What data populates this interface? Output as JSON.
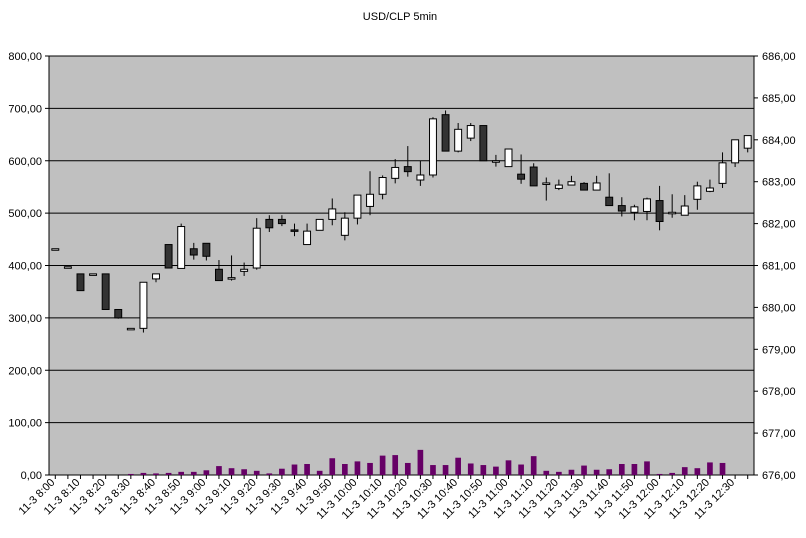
{
  "chart_data": {
    "type": "candlestick",
    "title": "USD/CLP   5min",
    "left_axis": {
      "min": 0,
      "max": 800,
      "ticks": [
        "0,00",
        "100,00",
        "200,00",
        "300,00",
        "400,00",
        "500,00",
        "600,00",
        "700,00",
        "800,00"
      ]
    },
    "right_axis": {
      "min": 676,
      "max": 686,
      "ticks": [
        "676,00",
        "677,00",
        "678,00",
        "679,00",
        "680,00",
        "681,00",
        "682,00",
        "683,00",
        "684,00",
        "685,00",
        "686,00"
      ]
    },
    "grid": "horizontal",
    "legend": "none",
    "colors": {
      "plot_bg": "#c0c0c0",
      "up_fill": "#ffffff",
      "down_fill": "#333333",
      "volume": "#660066",
      "grid": "#000000"
    },
    "x_labels": [
      "11-3 8:00",
      "11-3 8:10",
      "11-3 8:20",
      "11-3 8:30",
      "11-3 8:40",
      "11-3 8:50",
      "11-3 9:00",
      "11-3 9:10",
      "11-3 9:20",
      "11-3 9:30",
      "11-3 9:40",
      "11-3 9:50",
      "11-3 10:00",
      "11-3 10:10",
      "11-3 10:20",
      "11-3 10:30",
      "11-3 10:40",
      "11-3 10:50",
      "11-3 11:00",
      "11-3 11:10",
      "11-3 11:20",
      "11-3 11:30",
      "11-3 11:40",
      "11-3 11:50",
      "11-3 12:00",
      "11-3 12:10",
      "11-3 12:20",
      "11-3 12:30"
    ],
    "price_series": [
      {
        "o": 681.4,
        "h": 681.4,
        "l": 681.4,
        "c": 681.4
      },
      {
        "o": 680.97,
        "h": 680.97,
        "l": 680.97,
        "c": 680.97
      },
      {
        "o": 680.8,
        "h": 680.8,
        "l": 680.4,
        "c": 680.4
      },
      {
        "o": 680.8,
        "h": 680.8,
        "l": 680.8,
        "c": 680.8
      },
      {
        "o": 680.8,
        "h": 680.8,
        "l": 679.95,
        "c": 679.95
      },
      {
        "o": 679.95,
        "h": 679.95,
        "l": 679.73,
        "c": 679.75
      },
      {
        "o": 679.5,
        "h": 679.5,
        "l": 679.5,
        "c": 679.5
      },
      {
        "o": 679.5,
        "h": 680.6,
        "l": 679.4,
        "c": 680.6
      },
      {
        "o": 680.68,
        "h": 680.8,
        "l": 680.6,
        "c": 680.8
      },
      {
        "o": 681.5,
        "h": 681.5,
        "l": 680.94,
        "c": 680.94
      },
      {
        "o": 680.93,
        "h": 682.0,
        "l": 680.93,
        "c": 681.93
      },
      {
        "o": 681.4,
        "h": 681.54,
        "l": 681.14,
        "c": 681.25
      },
      {
        "o": 681.53,
        "h": 681.53,
        "l": 681.12,
        "c": 681.22
      },
      {
        "o": 680.91,
        "h": 681.13,
        "l": 680.75,
        "c": 680.64
      },
      {
        "o": 680.68,
        "h": 681.24,
        "l": 680.64,
        "c": 680.71
      },
      {
        "o": 680.86,
        "h": 681.07,
        "l": 680.75,
        "c": 680.91
      },
      {
        "o": 680.94,
        "h": 682.13,
        "l": 680.9,
        "c": 681.89
      },
      {
        "o": 682.1,
        "h": 682.2,
        "l": 681.8,
        "c": 681.9
      },
      {
        "o": 682.1,
        "h": 682.2,
        "l": 681.94,
        "c": 682.0
      },
      {
        "o": 681.85,
        "h": 682.0,
        "l": 681.7,
        "c": 681.82
      },
      {
        "o": 681.5,
        "h": 682.0,
        "l": 681.49,
        "c": 681.82
      },
      {
        "o": 681.84,
        "h": 682.1,
        "l": 681.84,
        "c": 682.1
      },
      {
        "o": 682.1,
        "h": 682.6,
        "l": 681.96,
        "c": 682.35
      },
      {
        "o": 681.72,
        "h": 682.27,
        "l": 681.6,
        "c": 682.13
      },
      {
        "o": 682.13,
        "h": 682.58,
        "l": 681.98,
        "c": 682.68
      },
      {
        "o": 682.41,
        "h": 683.25,
        "l": 682.2,
        "c": 682.7
      },
      {
        "o": 682.7,
        "h": 683.15,
        "l": 682.58,
        "c": 683.1
      },
      {
        "o": 683.08,
        "h": 683.54,
        "l": 682.96,
        "c": 683.34
      },
      {
        "o": 683.36,
        "h": 683.85,
        "l": 683.12,
        "c": 683.24
      },
      {
        "o": 683.04,
        "h": 683.5,
        "l": 682.9,
        "c": 683.16
      },
      {
        "o": 683.16,
        "h": 684.54,
        "l": 683.1,
        "c": 684.5
      },
      {
        "o": 684.6,
        "h": 684.7,
        "l": 683.81,
        "c": 683.73
      },
      {
        "o": 683.73,
        "h": 684.4,
        "l": 683.7,
        "c": 684.25
      },
      {
        "o": 684.04,
        "h": 684.4,
        "l": 683.97,
        "c": 684.34
      },
      {
        "o": 684.34,
        "h": 684.28,
        "l": 683.5,
        "c": 683.5
      },
      {
        "o": 683.5,
        "h": 683.64,
        "l": 683.36,
        "c": 683.5
      },
      {
        "o": 683.36,
        "h": 683.72,
        "l": 683.38,
        "c": 683.78
      },
      {
        "o": 683.18,
        "h": 683.65,
        "l": 682.95,
        "c": 683.06
      },
      {
        "o": 683.35,
        "h": 683.44,
        "l": 682.9,
        "c": 682.9
      },
      {
        "o": 682.97,
        "h": 683.1,
        "l": 682.55,
        "c": 682.97
      },
      {
        "o": 682.84,
        "h": 683.05,
        "l": 682.8,
        "c": 682.92
      },
      {
        "o": 682.92,
        "h": 683.14,
        "l": 682.96,
        "c": 683.0
      },
      {
        "o": 682.96,
        "h": 682.99,
        "l": 682.79,
        "c": 682.8
      },
      {
        "o": 682.8,
        "h": 683.14,
        "l": 682.86,
        "c": 682.97
      },
      {
        "o": 682.63,
        "h": 683.2,
        "l": 682.57,
        "c": 682.43
      },
      {
        "o": 682.43,
        "h": 682.63,
        "l": 682.17,
        "c": 682.3
      },
      {
        "o": 682.27,
        "h": 682.45,
        "l": 682.08,
        "c": 682.4
      },
      {
        "o": 682.29,
        "h": 682.62,
        "l": 682.08,
        "c": 682.59
      },
      {
        "o": 682.55,
        "h": 682.9,
        "l": 681.84,
        "c": 682.05
      },
      {
        "o": 682.27,
        "h": 682.7,
        "l": 682.14,
        "c": 682.27
      },
      {
        "o": 682.2,
        "h": 682.68,
        "l": 682.25,
        "c": 682.42
      },
      {
        "o": 682.58,
        "h": 683.0,
        "l": 682.33,
        "c": 682.9
      },
      {
        "o": 682.77,
        "h": 683.05,
        "l": 682.75,
        "c": 682.85
      },
      {
        "o": 682.96,
        "h": 683.7,
        "l": 682.85,
        "c": 683.45
      },
      {
        "o": 683.45,
        "h": 683.93,
        "l": 683.35,
        "c": 684.0
      },
      {
        "o": 683.8,
        "h": 684.0,
        "l": 683.7,
        "c": 684.1
      }
    ],
    "volume_series": [
      0,
      0,
      0,
      0,
      0,
      0,
      2,
      4,
      3,
      4,
      6,
      6,
      9,
      17,
      13,
      11,
      8,
      3,
      12,
      20,
      21,
      8,
      32,
      21,
      26,
      23,
      37,
      38,
      23,
      48,
      19,
      19,
      33,
      22,
      19,
      16,
      28,
      20,
      36,
      8,
      6,
      10,
      18,
      10,
      11,
      21,
      21,
      26,
      2,
      4,
      15,
      13,
      24,
      23,
      0,
      0
    ]
  }
}
